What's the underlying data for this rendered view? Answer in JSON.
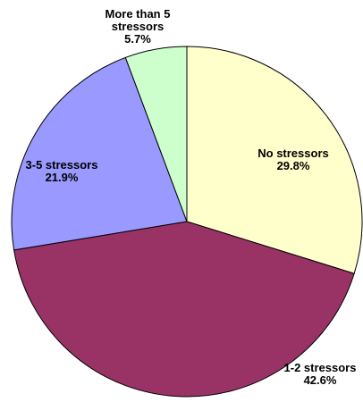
{
  "chart_data": {
    "type": "pie",
    "title": "",
    "start_angle_deg": 0,
    "direction": "clockwise",
    "slices": [
      {
        "label": "No stressors",
        "value": 29.8,
        "value_label": "29.8%",
        "color": "#FFFFCC"
      },
      {
        "label": "1-2 stressors",
        "value": 42.6,
        "value_label": "42.6%",
        "color": "#993366"
      },
      {
        "label": "3-5 stressors",
        "value": 21.9,
        "value_label": "21.9%",
        "color": "#9999FF"
      },
      {
        "label_lines": [
          "More than 5",
          "stressors"
        ],
        "label": "More than 5 stressors",
        "value": 5.7,
        "value_label": "5.7%",
        "color": "#CCFFCC"
      }
    ],
    "slice_border_color": "#000000",
    "legend": "none"
  }
}
